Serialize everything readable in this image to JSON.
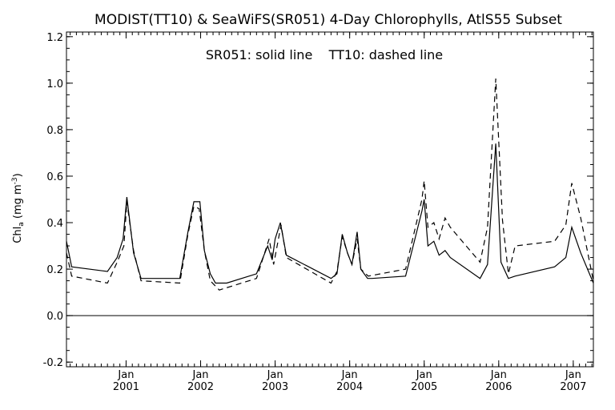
{
  "chart_data": {
    "type": "line",
    "title": "MODIST(TT10) & SeaWiFS(SR051) 4-Day Chlorophylls, AtlS55 Subset",
    "annotation": "SR051: solid line    TT10: dashed line",
    "ylabel": {
      "main": "Chl",
      "sub": "a",
      "unit_open": " (mg m",
      "sup": "-3",
      "unit_close": ")"
    },
    "xlabel": "",
    "x_units": "years (fractional, Jan 1 = integer)",
    "xlim": [
      2000.2,
      2007.27
    ],
    "ylim": [
      -0.22,
      1.22
    ],
    "yticks": [
      -0.2,
      0.0,
      0.2,
      0.4,
      0.6,
      0.8,
      1.0,
      1.2
    ],
    "ytick_labels": [
      "-0.2",
      "0.0",
      "0.2",
      "0.4",
      "0.6",
      "0.8",
      "1.0",
      "1.2"
    ],
    "xticks": [
      {
        "value": 2001,
        "month": "Jan",
        "year": "2001"
      },
      {
        "value": 2002,
        "month": "Jan",
        "year": "2002"
      },
      {
        "value": 2003,
        "month": "Jan",
        "year": "2003"
      },
      {
        "value": 2004,
        "month": "Jan",
        "year": "2004"
      },
      {
        "value": 2005,
        "month": "Jan",
        "year": "2005"
      },
      {
        "value": 2006,
        "month": "Jan",
        "year": "2006"
      },
      {
        "value": 2007,
        "month": "Jan",
        "year": "2007"
      }
    ],
    "zero_line": 0.0,
    "grid": false,
    "series": [
      {
        "name": "SR051",
        "style": "solid",
        "color": "#000000",
        "x": [
          2000.2,
          2000.27,
          2000.75,
          2000.88,
          2000.96,
          2001.01,
          2001.1,
          2001.2,
          2001.72,
          2001.83,
          2001.91,
          2001.99,
          2002.05,
          2002.13,
          2002.2,
          2002.35,
          2002.75,
          2002.9,
          2002.96,
          2003.0,
          2003.07,
          2003.15,
          2003.75,
          2003.83,
          2003.9,
          2003.97,
          2004.03,
          2004.1,
          2004.15,
          2004.24,
          2004.3,
          2004.75,
          2004.97,
          2005.0,
          2005.05,
          2005.13,
          2005.2,
          2005.28,
          2005.35,
          2005.75,
          2005.85,
          2005.96,
          2006.03,
          2006.13,
          2006.22,
          2006.75,
          2006.9,
          2006.98,
          2007.1,
          2007.27
        ],
        "y": [
          0.32,
          0.21,
          0.19,
          0.25,
          0.33,
          0.51,
          0.27,
          0.16,
          0.16,
          0.36,
          0.49,
          0.49,
          0.28,
          0.18,
          0.14,
          0.14,
          0.18,
          0.3,
          0.24,
          0.33,
          0.4,
          0.26,
          0.16,
          0.18,
          0.35,
          0.27,
          0.22,
          0.36,
          0.2,
          0.16,
          0.16,
          0.17,
          0.45,
          0.5,
          0.3,
          0.32,
          0.26,
          0.28,
          0.25,
          0.16,
          0.22,
          0.74,
          0.23,
          0.16,
          0.17,
          0.21,
          0.25,
          0.38,
          0.27,
          0.14
        ]
      },
      {
        "name": "TT10",
        "style": "dashed",
        "color": "#000000",
        "x": [
          2000.2,
          2000.27,
          2000.75,
          2000.88,
          2000.97,
          2001.01,
          2001.1,
          2001.2,
          2001.72,
          2001.83,
          2001.91,
          2001.98,
          2002.05,
          2002.13,
          2002.25,
          2002.75,
          2002.85,
          2002.92,
          2002.98,
          2003.08,
          2003.15,
          2003.75,
          2003.83,
          2003.9,
          2003.97,
          2004.03,
          2004.1,
          2004.15,
          2004.25,
          2004.75,
          2004.97,
          2005.0,
          2005.05,
          2005.13,
          2005.2,
          2005.28,
          2005.35,
          2005.75,
          2005.85,
          2005.96,
          2006.05,
          2006.13,
          2006.22,
          2006.75,
          2006.9,
          2006.98,
          2007.1,
          2007.27
        ],
        "y": [
          0.27,
          0.17,
          0.14,
          0.23,
          0.3,
          0.49,
          0.28,
          0.15,
          0.14,
          0.35,
          0.47,
          0.46,
          0.28,
          0.15,
          0.11,
          0.16,
          0.26,
          0.33,
          0.22,
          0.39,
          0.25,
          0.14,
          0.19,
          0.34,
          0.27,
          0.22,
          0.33,
          0.2,
          0.17,
          0.2,
          0.5,
          0.58,
          0.38,
          0.4,
          0.33,
          0.42,
          0.38,
          0.23,
          0.38,
          1.02,
          0.41,
          0.18,
          0.3,
          0.32,
          0.39,
          0.57,
          0.42,
          0.15
        ]
      }
    ]
  }
}
